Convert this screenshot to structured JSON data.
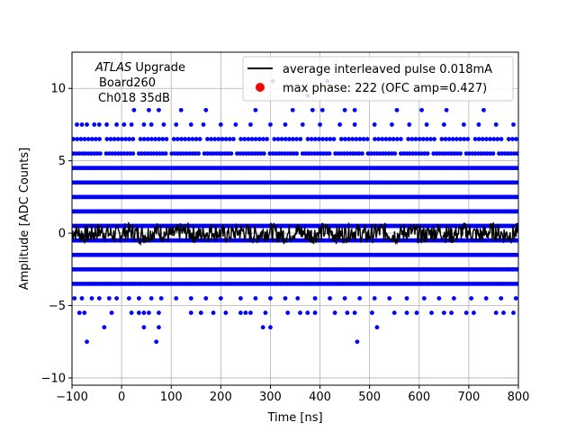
{
  "chart_data": {
    "type": "scatter",
    "title": "",
    "xlabel": "Time [ns]",
    "ylabel": "Amplitude [ADC Counts]",
    "xlim": [
      -100,
      800
    ],
    "ylim": [
      -10.5,
      12.5
    ],
    "xticks": [
      -100,
      0,
      100,
      200,
      300,
      400,
      500,
      600,
      700,
      800
    ],
    "xtick_labels": [
      "−100",
      "0",
      "100",
      "200",
      "300",
      "400",
      "500",
      "600",
      "700",
      "800"
    ],
    "yticks": [
      -10,
      -5,
      0,
      5,
      10
    ],
    "ytick_labels": [
      "−10",
      "−5",
      "0",
      "5",
      "10"
    ],
    "grid": true,
    "legend_position": "top-right",
    "annotation": {
      "line1_italic": "ATLAS",
      "line1_rest": " Upgrade",
      "line2": "Board260",
      "line3": "Ch018 35dB"
    },
    "series": [
      {
        "name": "average interleaved pulse 0.018mA",
        "kind": "line",
        "color": "#000000"
      },
      {
        "name": "max phase: 222 (OFC amp=0.427)",
        "kind": "marker",
        "color": "#ff0000"
      },
      {
        "kind": "scatter",
        "color": "#0000ff",
        "dense_levels": [
          -3.5,
          -2.5,
          -1.5,
          -0.5,
          0.5,
          1.5,
          2.5,
          3.5,
          4.5
        ],
        "levels": [
          {
            "y": 7.5,
            "x": [
              -90,
              -80,
              -70,
              -55,
              -45,
              -30,
              -10,
              5,
              20,
              45,
              60,
              85,
              110,
              140,
              165,
              200,
              230,
              260,
              300,
              330,
              365,
              400,
              440,
              470,
              510,
              545,
              580,
              615,
              650,
              690,
              720,
              755,
              790
            ]
          },
          {
            "y": 8.5,
            "x": [
              25,
              55,
              75,
              120,
              170,
              270,
              345,
              385,
              405,
              450,
              470,
              555,
              605,
              655,
              730
            ]
          },
          {
            "y": 9.5,
            "x": [
              375
            ]
          },
          {
            "y": 10.5,
            "x": [
              305,
              415
            ]
          },
          {
            "y": -4.5,
            "x": [
              -95,
              -80,
              -60,
              -45,
              -25,
              -10,
              15,
              35,
              60,
              80,
              110,
              140,
              170,
              200,
              240,
              270,
              300,
              330,
              355,
              390,
              420,
              450,
              480,
              510,
              540,
              575,
              610,
              640,
              670,
              705,
              735,
              765,
              795
            ]
          },
          {
            "y": -5.5,
            "x": [
              -85,
              -75,
              -20,
              20,
              35,
              45,
              55,
              75,
              140,
              160,
              185,
              210,
              240,
              250,
              260,
              290,
              335,
              360,
              375,
              390,
              430,
              455,
              470,
              505,
              550,
              575,
              595,
              625,
              650,
              665,
              695,
              710,
              755,
              770,
              790
            ]
          },
          {
            "y": -6.5,
            "x": [
              -35,
              45,
              75,
              285,
              300,
              515
            ]
          },
          {
            "y": -7.5,
            "x": [
              -70,
              70,
              475
            ]
          }
        ]
      }
    ]
  }
}
